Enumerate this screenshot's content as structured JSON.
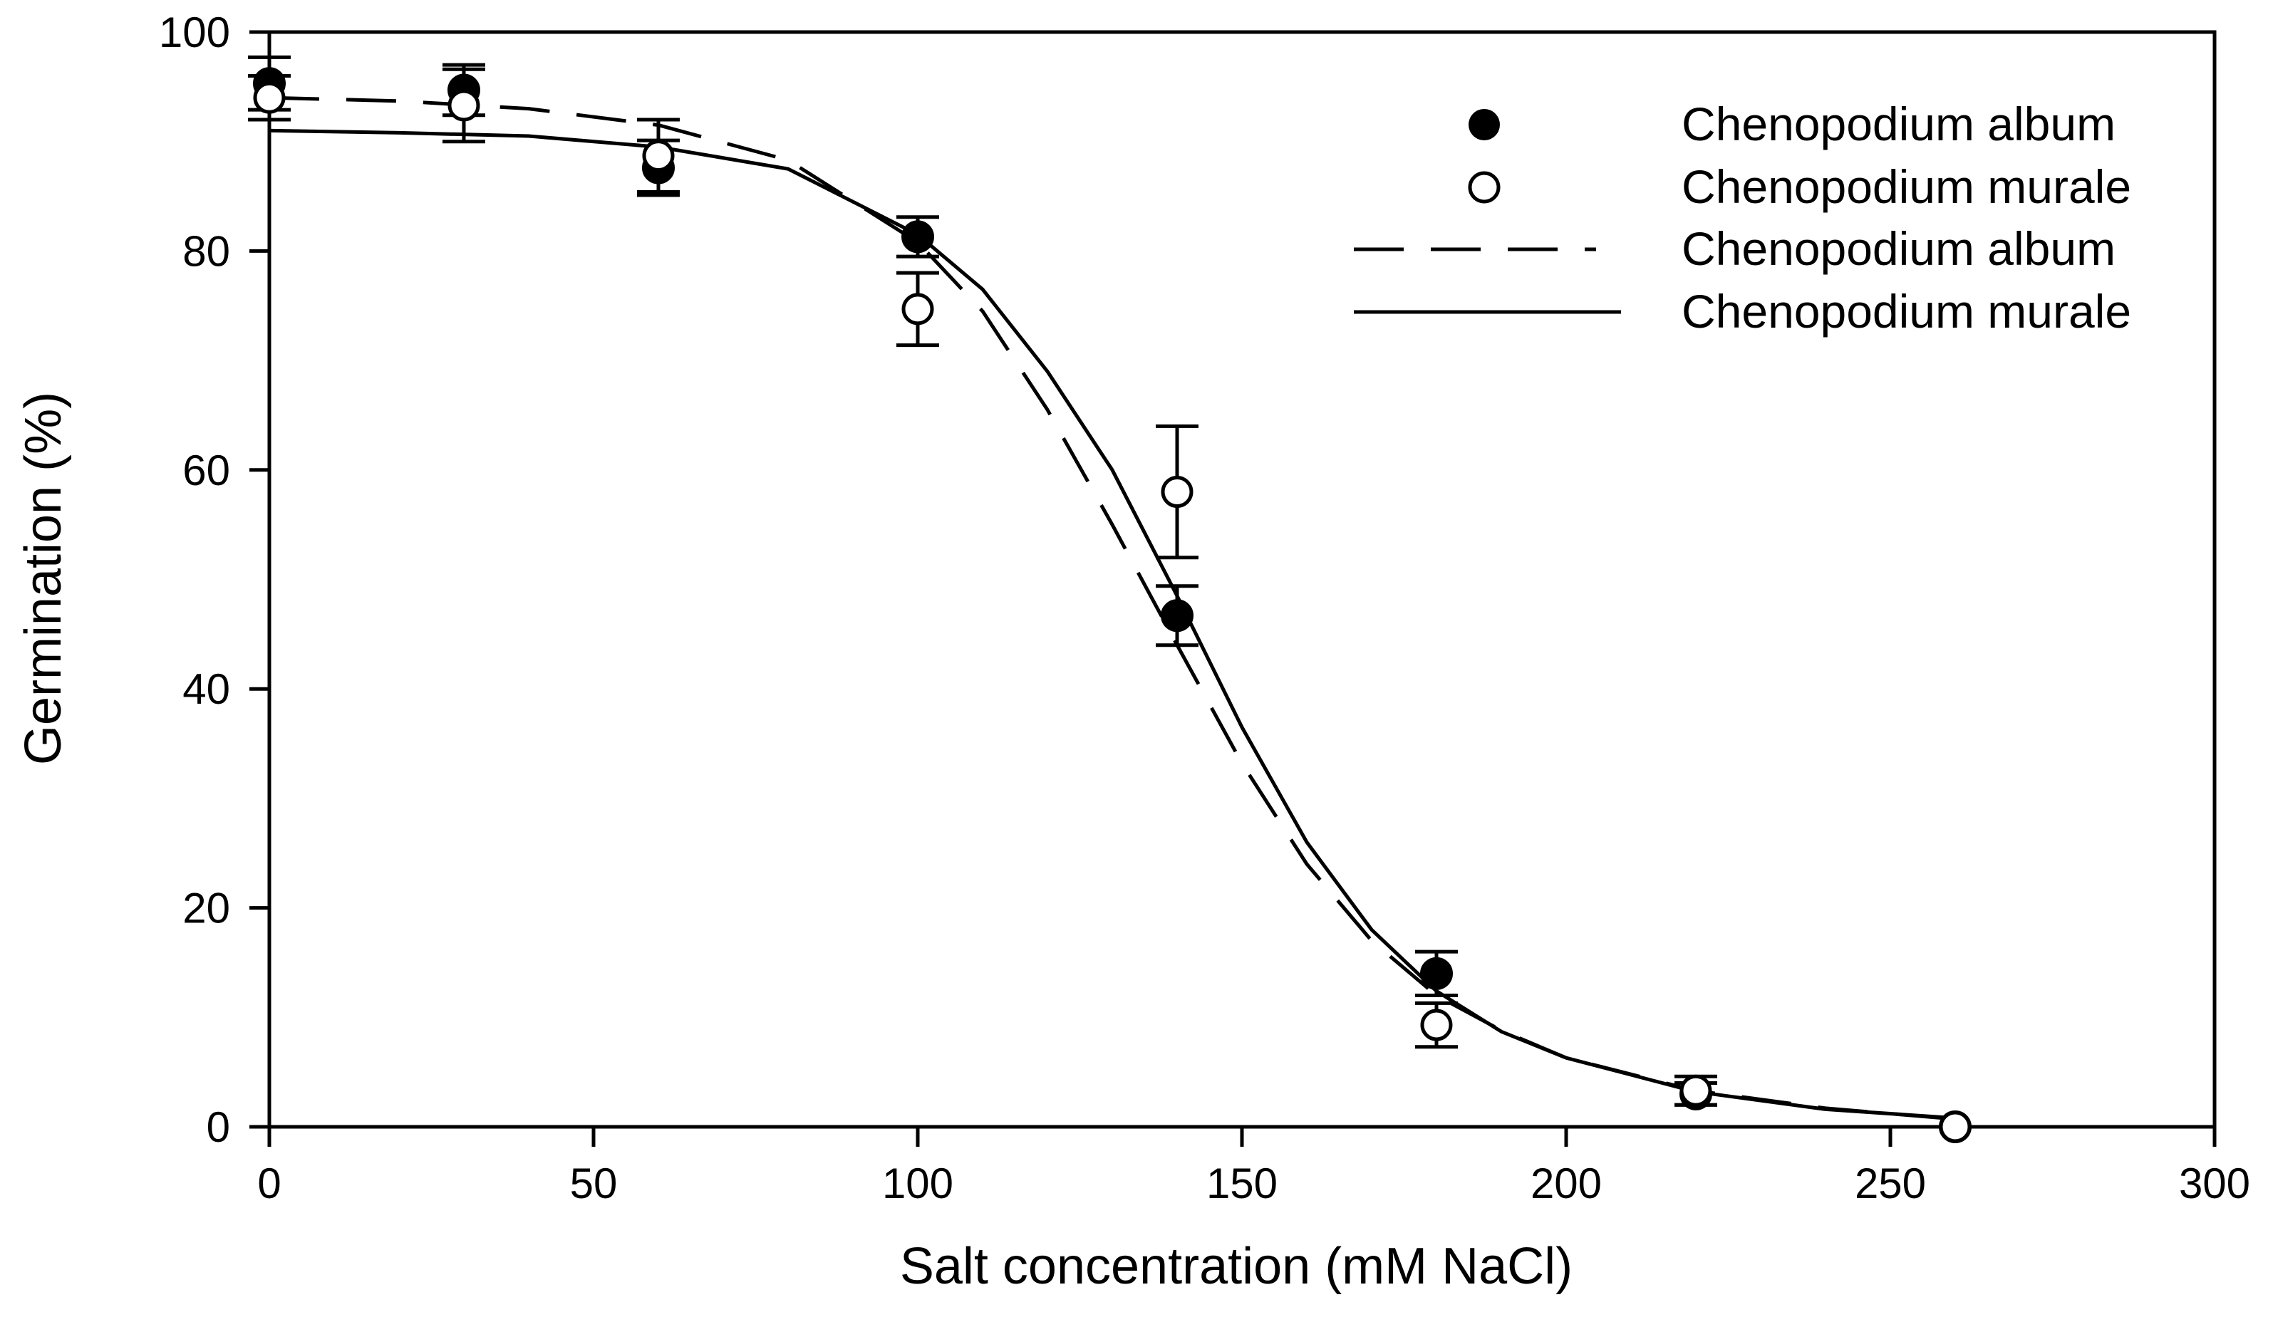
{
  "chart_data": {
    "type": "scatter",
    "title": "",
    "xlabel": "Salt concentration (mM NaCl)",
    "ylabel": "Germination (%)",
    "xlim": [
      0,
      300
    ],
    "ylim": [
      0,
      100
    ],
    "xticks": [
      0,
      50,
      100,
      150,
      200,
      250,
      300
    ],
    "yticks": [
      0,
      20,
      40,
      60,
      80,
      100
    ],
    "xtick_labels": [
      "0",
      "50",
      "100",
      "150",
      "200",
      "250",
      "300"
    ],
    "ytick_labels": [
      "0",
      "20",
      "40",
      "60",
      "80",
      "100"
    ],
    "grid": false,
    "legend_position": "top-right",
    "series": [
      {
        "name": "Chenopodium album",
        "marker": "filled-circle",
        "x": [
          0,
          30,
          60,
          100,
          140,
          180,
          220,
          260
        ],
        "y": [
          95.3,
          94.7,
          87.6,
          81.3,
          46.7,
          14.0,
          3.0,
          0.0
        ],
        "err": [
          2.4,
          2.3,
          2.5,
          1.8,
          2.7,
          2.0,
          1.0,
          0.0
        ]
      },
      {
        "name": "Chenopodium murale",
        "marker": "open-circle",
        "x": [
          0,
          30,
          60,
          100,
          140,
          180,
          220,
          260
        ],
        "y": [
          94.0,
          93.3,
          88.7,
          74.7,
          58.0,
          9.3,
          3.3,
          0.0
        ],
        "err": [
          2.0,
          3.3,
          3.3,
          3.3,
          6.0,
          2.0,
          1.3,
          0.0
        ]
      }
    ],
    "fits": [
      {
        "name": "Chenopodium album",
        "style": "dashed",
        "model": "sigmoid",
        "x": [
          0,
          20,
          40,
          60,
          80,
          100,
          110,
          120,
          130,
          140,
          150,
          160,
          170,
          180,
          190,
          200,
          220,
          240,
          260
        ],
        "y": [
          94.0,
          93.7,
          93.0,
          91.5,
          88.3,
          80.8,
          74.5,
          65.5,
          55.0,
          44.0,
          33.2,
          24.0,
          17.0,
          12.0,
          8.8,
          6.3,
          3.3,
          1.7,
          0.7
        ]
      },
      {
        "name": "Chenopodium murale",
        "style": "solid",
        "model": "sigmoid",
        "x": [
          0,
          20,
          40,
          60,
          80,
          100,
          110,
          120,
          130,
          140,
          150,
          160,
          170,
          180,
          190,
          200,
          220,
          240,
          260
        ],
        "y": [
          91.0,
          90.8,
          90.5,
          89.5,
          87.5,
          81.5,
          76.5,
          69.0,
          60.0,
          48.5,
          36.5,
          26.0,
          18.0,
          12.4,
          8.7,
          6.3,
          3.2,
          1.6,
          0.8
        ]
      }
    ],
    "legend": [
      {
        "label": "Chenopodium album",
        "symbol": "filled-circle"
      },
      {
        "label": "Chenopodium murale",
        "symbol": "open-circle"
      },
      {
        "label": "Chenopodium album",
        "symbol": "dashed-line"
      },
      {
        "label": "Chenopodium murale",
        "symbol": "solid-line"
      }
    ]
  }
}
